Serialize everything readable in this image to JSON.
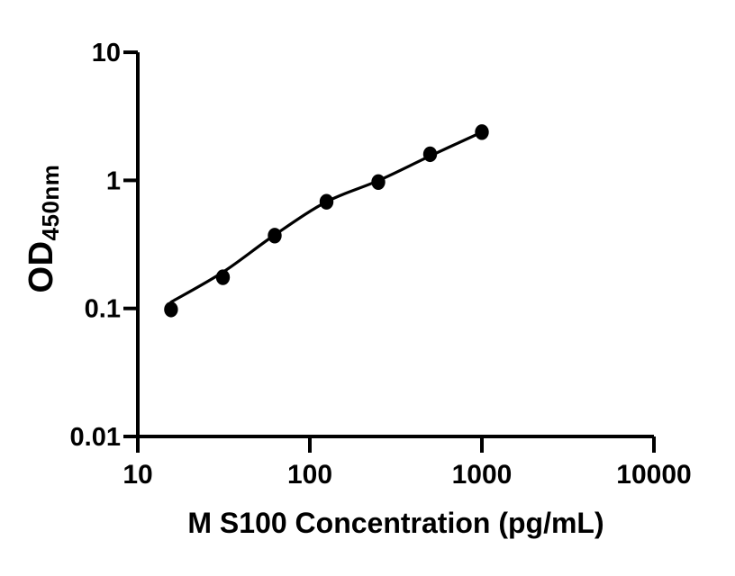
{
  "figure": {
    "background": "#ffffff",
    "foreground": "#000000"
  },
  "chart_data": {
    "type": "scatter",
    "subtype": "standard-curve-with-fit",
    "title": "",
    "xlabel": "M S100 Concentration (pg/mL)",
    "ylabel_main": "OD",
    "ylabel_sub": "450nm",
    "x_scale": "log10",
    "y_scale": "log10",
    "xlim": [
      10,
      10000
    ],
    "ylim": [
      0.01,
      10
    ],
    "x_ticks": [
      10,
      100,
      1000,
      10000
    ],
    "x_tick_labels": [
      "10",
      "100",
      "1000",
      "10000"
    ],
    "y_ticks": [
      0.01,
      0.1,
      1,
      10
    ],
    "y_tick_labels": [
      "0.01",
      "0.1",
      "1",
      "10"
    ],
    "grid": false,
    "legend": "none",
    "series": [
      {
        "name": "standards",
        "marker": "filled-circle",
        "color": "#000000",
        "x": [
          15.6,
          31.25,
          62.5,
          125,
          250,
          500,
          1000
        ],
        "y": [
          0.098,
          0.175,
          0.37,
          0.68,
          0.97,
          1.6,
          2.38
        ]
      }
    ],
    "fit_curve": {
      "name": "fitted-standard-curve",
      "color": "#000000",
      "points": [
        [
          15.6,
          0.112
        ],
        [
          31.25,
          0.192
        ],
        [
          62.5,
          0.375
        ],
        [
          125,
          0.68
        ],
        [
          250,
          0.995
        ],
        [
          500,
          1.55
        ],
        [
          1000,
          2.38
        ]
      ]
    }
  }
}
